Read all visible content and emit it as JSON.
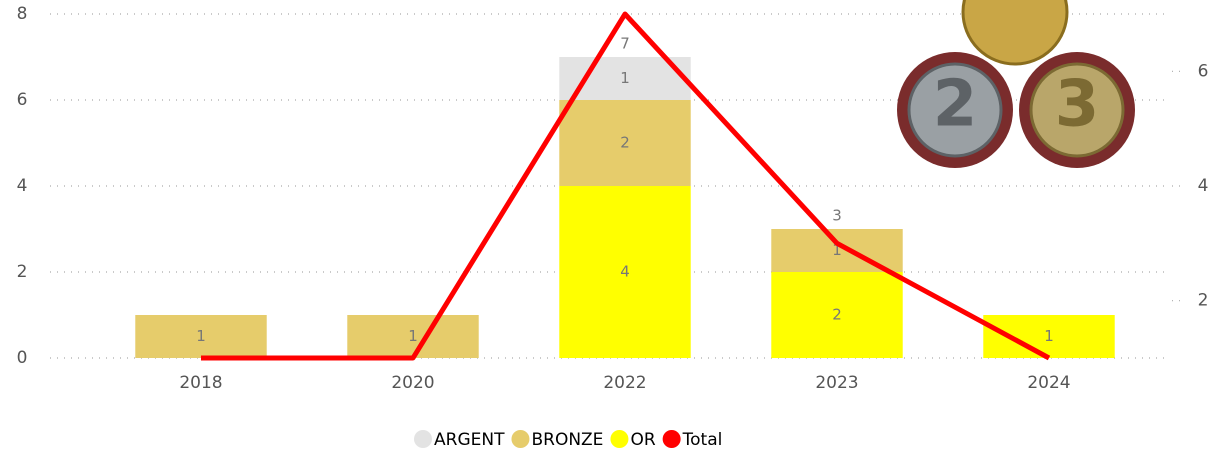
{
  "chart_data": {
    "type": "bar",
    "categories": [
      "2018",
      "2020",
      "2022",
      "2023",
      "2024"
    ],
    "series": [
      {
        "name": "ARGENT",
        "color": "#e3e3e3",
        "values": [
          null,
          null,
          1,
          null,
          null
        ]
      },
      {
        "name": "BRONZE",
        "color": "#e6cc6b",
        "values": [
          1,
          1,
          2,
          1,
          null
        ]
      },
      {
        "name": "OR",
        "color": "#ffff00",
        "values": [
          null,
          null,
          4,
          2,
          1
        ]
      },
      {
        "name": "Total",
        "type": "line",
        "axis": "y2",
        "color": "#ff0000",
        "values": [
          1,
          1,
          7,
          3,
          1
        ]
      }
    ],
    "stack_order": [
      "OR",
      "BRONZE",
      "ARGENT"
    ],
    "ylim": [
      0,
      8
    ],
    "yticks": [
      0,
      2,
      4,
      6,
      8
    ],
    "y2lim": [
      1,
      7
    ],
    "y2ticks": [
      2,
      4,
      6
    ],
    "grid": true,
    "legend": "bottom"
  }
}
